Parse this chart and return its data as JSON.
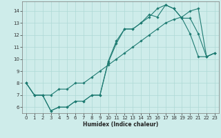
{
  "title": "",
  "xlabel": "Humidex (Indice chaleur)",
  "background_color": "#ceecea",
  "grid_color": "#aed8d5",
  "line_color": "#1e7b72",
  "xlim": [
    -0.5,
    23.5
  ],
  "ylim": [
    5.5,
    14.8
  ],
  "xticks": [
    0,
    1,
    2,
    3,
    4,
    5,
    6,
    7,
    8,
    9,
    10,
    11,
    12,
    13,
    14,
    15,
    16,
    17,
    18,
    19,
    20,
    21,
    22,
    23
  ],
  "yticks": [
    6,
    7,
    8,
    9,
    10,
    11,
    12,
    13,
    14
  ],
  "series1_x": [
    0,
    1,
    2,
    3,
    4,
    5,
    6,
    7,
    8,
    9,
    10,
    11,
    12,
    13,
    14,
    15,
    16,
    17,
    18,
    19,
    20,
    21,
    22,
    23
  ],
  "series1_y": [
    8.0,
    7.0,
    7.0,
    5.7,
    6.0,
    6.0,
    6.5,
    6.5,
    7.0,
    7.0,
    9.7,
    11.3,
    12.5,
    12.5,
    13.0,
    13.7,
    13.5,
    14.5,
    14.2,
    13.4,
    12.1,
    10.2,
    10.2,
    10.5
  ],
  "series2_x": [
    0,
    1,
    2,
    3,
    4,
    5,
    6,
    7,
    8,
    9,
    10,
    11,
    12,
    13,
    14,
    15,
    16,
    17,
    18,
    19,
    20,
    21,
    22,
    23
  ],
  "series2_y": [
    8.0,
    7.0,
    7.0,
    5.7,
    6.0,
    6.0,
    6.5,
    6.5,
    7.0,
    7.0,
    9.8,
    11.5,
    12.5,
    12.5,
    13.0,
    13.5,
    14.2,
    14.5,
    14.2,
    13.4,
    13.4,
    12.1,
    10.2,
    10.5
  ],
  "series3_x": [
    0,
    1,
    2,
    3,
    4,
    5,
    6,
    7,
    8,
    9,
    10,
    11,
    12,
    13,
    14,
    15,
    16,
    17,
    18,
    19,
    20,
    21,
    22,
    23
  ],
  "series3_y": [
    8.0,
    7.0,
    7.0,
    7.0,
    7.5,
    7.5,
    8.0,
    8.0,
    8.5,
    9.0,
    9.5,
    10.0,
    10.5,
    11.0,
    11.5,
    12.0,
    12.5,
    13.0,
    13.3,
    13.5,
    14.0,
    14.2,
    10.2,
    10.5
  ],
  "marker_size": 1.8,
  "line_width": 0.8,
  "tick_fontsize": 5.0,
  "xlabel_fontsize": 5.5
}
